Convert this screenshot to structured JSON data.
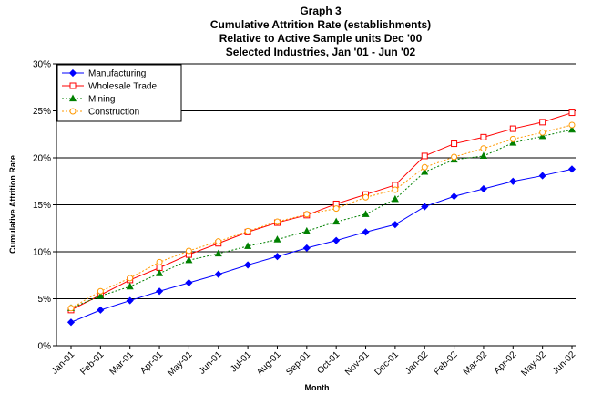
{
  "chart_data": {
    "type": "line",
    "title_lines": [
      "Graph 3",
      "Cumulative Attrition Rate (establishments)",
      "Relative to Active Sample units Dec '00",
      "Selected Industries, Jan '01 - Jun '02"
    ],
    "xlabel": "Month",
    "ylabel": "Cumulative Attrition Rate",
    "ylim": [
      0,
      30
    ],
    "y_ticks": [
      "0%",
      "5%",
      "10%",
      "15%",
      "20%",
      "25%",
      "30%"
    ],
    "y_tick_values": [
      0,
      5,
      10,
      15,
      20,
      25,
      30
    ],
    "grid": "horizontal",
    "legend_position": "top-left",
    "categories": [
      "Jan-01",
      "Feb-01",
      "Mar-01",
      "Apr-01",
      "May-01",
      "Jun-01",
      "Jul-01",
      "Aug-01",
      "Sep-01",
      "Oct-01",
      "Nov-01",
      "Dec-01",
      "Jan-02",
      "Feb-02",
      "Mar-02",
      "Apr-02",
      "May-02",
      "Jun-02"
    ],
    "series": [
      {
        "name": "Manufacturing",
        "color": "#0000ff",
        "marker": "diamond",
        "line_style": "solid",
        "values": [
          2.5,
          3.8,
          4.8,
          5.8,
          6.7,
          7.6,
          8.6,
          9.5,
          10.4,
          11.2,
          12.1,
          12.9,
          14.8,
          15.9,
          16.7,
          17.5,
          18.1,
          18.8
        ]
      },
      {
        "name": "Wholesale Trade",
        "color": "#ff0000",
        "marker": "square",
        "line_style": "solid",
        "values": [
          3.8,
          5.4,
          7.0,
          8.3,
          9.7,
          10.9,
          12.1,
          13.1,
          13.9,
          15.1,
          16.1,
          17.1,
          20.2,
          21.5,
          22.2,
          23.1,
          23.8,
          24.8
        ]
      },
      {
        "name": "Mining",
        "color": "#008000",
        "marker": "triangle",
        "line_style": "dotted",
        "values": [
          4.0,
          5.3,
          6.3,
          7.7,
          9.1,
          9.8,
          10.6,
          11.3,
          12.2,
          13.2,
          14.0,
          15.6,
          18.5,
          19.8,
          20.2,
          21.6,
          22.3,
          23.0
        ]
      },
      {
        "name": "Construction",
        "color": "#ff9900",
        "marker": "circle",
        "line_style": "dotted",
        "values": [
          4.0,
          5.8,
          7.2,
          8.9,
          10.1,
          11.1,
          12.2,
          13.2,
          14.0,
          14.6,
          15.8,
          16.6,
          19.0,
          20.1,
          21.0,
          22.0,
          22.7,
          23.5
        ]
      }
    ]
  }
}
